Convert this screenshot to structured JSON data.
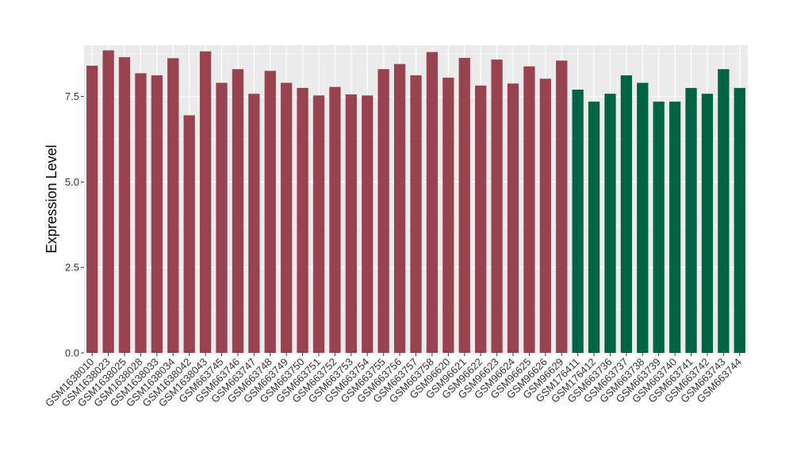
{
  "chart_data": {
    "type": "bar",
    "title": "",
    "xlabel": "",
    "ylabel": "Expression Level",
    "ylim": [
      0,
      9.0
    ],
    "yticks": [
      0.0,
      2.5,
      5.0,
      7.5
    ],
    "ytick_labels": [
      "0.0",
      "2.5",
      "5.0",
      "7.5"
    ],
    "grid": true,
    "legend": "none",
    "group_colors": [
      "#9a4350",
      "#006444"
    ],
    "categories": [
      "GSM1638010",
      "GSM1638023",
      "GSM1638025",
      "GSM1638028",
      "GSM1638033",
      "GSM1638034",
      "GSM1638042",
      "GSM1638043",
      "GSM663745",
      "GSM663746",
      "GSM663747",
      "GSM663748",
      "GSM663749",
      "GSM663750",
      "GSM663751",
      "GSM663752",
      "GSM663753",
      "GSM663754",
      "GSM663755",
      "GSM663756",
      "GSM663757",
      "GSM663758",
      "GSM96620",
      "GSM96621",
      "GSM96622",
      "GSM96623",
      "GSM96624",
      "GSM96625",
      "GSM96626",
      "GSM96629",
      "GSM176411",
      "GSM176412",
      "GSM663736",
      "GSM663737",
      "GSM663738",
      "GSM663739",
      "GSM663740",
      "GSM663741",
      "GSM663742",
      "GSM663743",
      "GSM663744"
    ],
    "values": [
      8.4,
      8.85,
      8.65,
      8.18,
      8.12,
      8.62,
      6.95,
      8.82,
      7.9,
      8.3,
      7.58,
      8.25,
      7.9,
      7.75,
      7.53,
      7.78,
      7.56,
      7.53,
      8.3,
      8.45,
      8.12,
      8.8,
      8.05,
      8.63,
      7.82,
      8.58,
      7.88,
      8.38,
      8.02,
      8.55,
      7.7,
      7.35,
      7.58,
      8.12,
      7.9,
      7.35,
      7.35,
      7.75,
      7.58,
      8.3,
      7.75
    ],
    "groups": [
      0,
      0,
      0,
      0,
      0,
      0,
      0,
      0,
      0,
      0,
      0,
      0,
      0,
      0,
      0,
      0,
      0,
      0,
      0,
      0,
      0,
      0,
      0,
      0,
      0,
      0,
      0,
      0,
      0,
      0,
      1,
      1,
      1,
      1,
      1,
      1,
      1,
      1,
      1,
      1,
      1
    ]
  }
}
